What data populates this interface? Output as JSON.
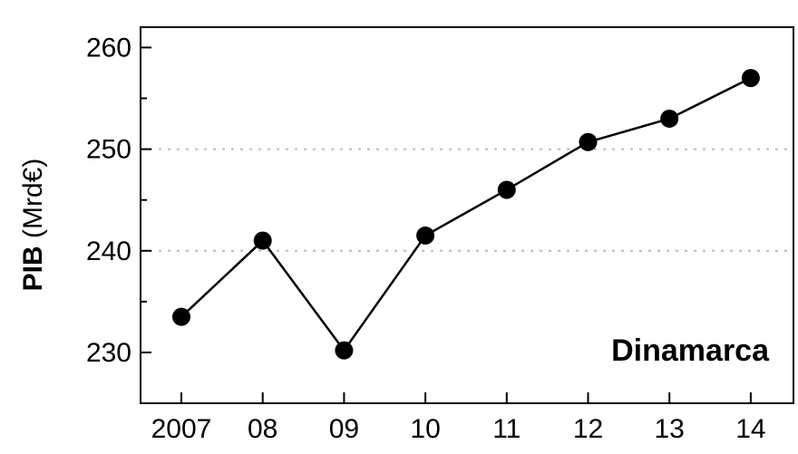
{
  "chart_data": {
    "type": "line",
    "x": [
      "2007",
      "08",
      "09",
      "10",
      "11",
      "12",
      "13",
      "14"
    ],
    "series": [
      {
        "values": [
          233.5,
          241.0,
          230.2,
          241.5,
          246.0,
          250.7,
          253.0,
          257.0
        ]
      }
    ],
    "ylabel_bold": "PIB",
    "ylabel_rest": " (Mrd€)",
    "annotation": "Dinamarca",
    "ylim": [
      225,
      262
    ],
    "yticks_major": [
      230,
      240,
      250,
      260
    ],
    "yticks_minor": [
      235,
      245,
      255
    ],
    "grid_y": [
      240,
      250
    ],
    "grid": "dotted horizontal at 240 and 250",
    "colors": {
      "line": "#000000",
      "marker": "#000000",
      "grid": "#bbbbbb"
    }
  }
}
